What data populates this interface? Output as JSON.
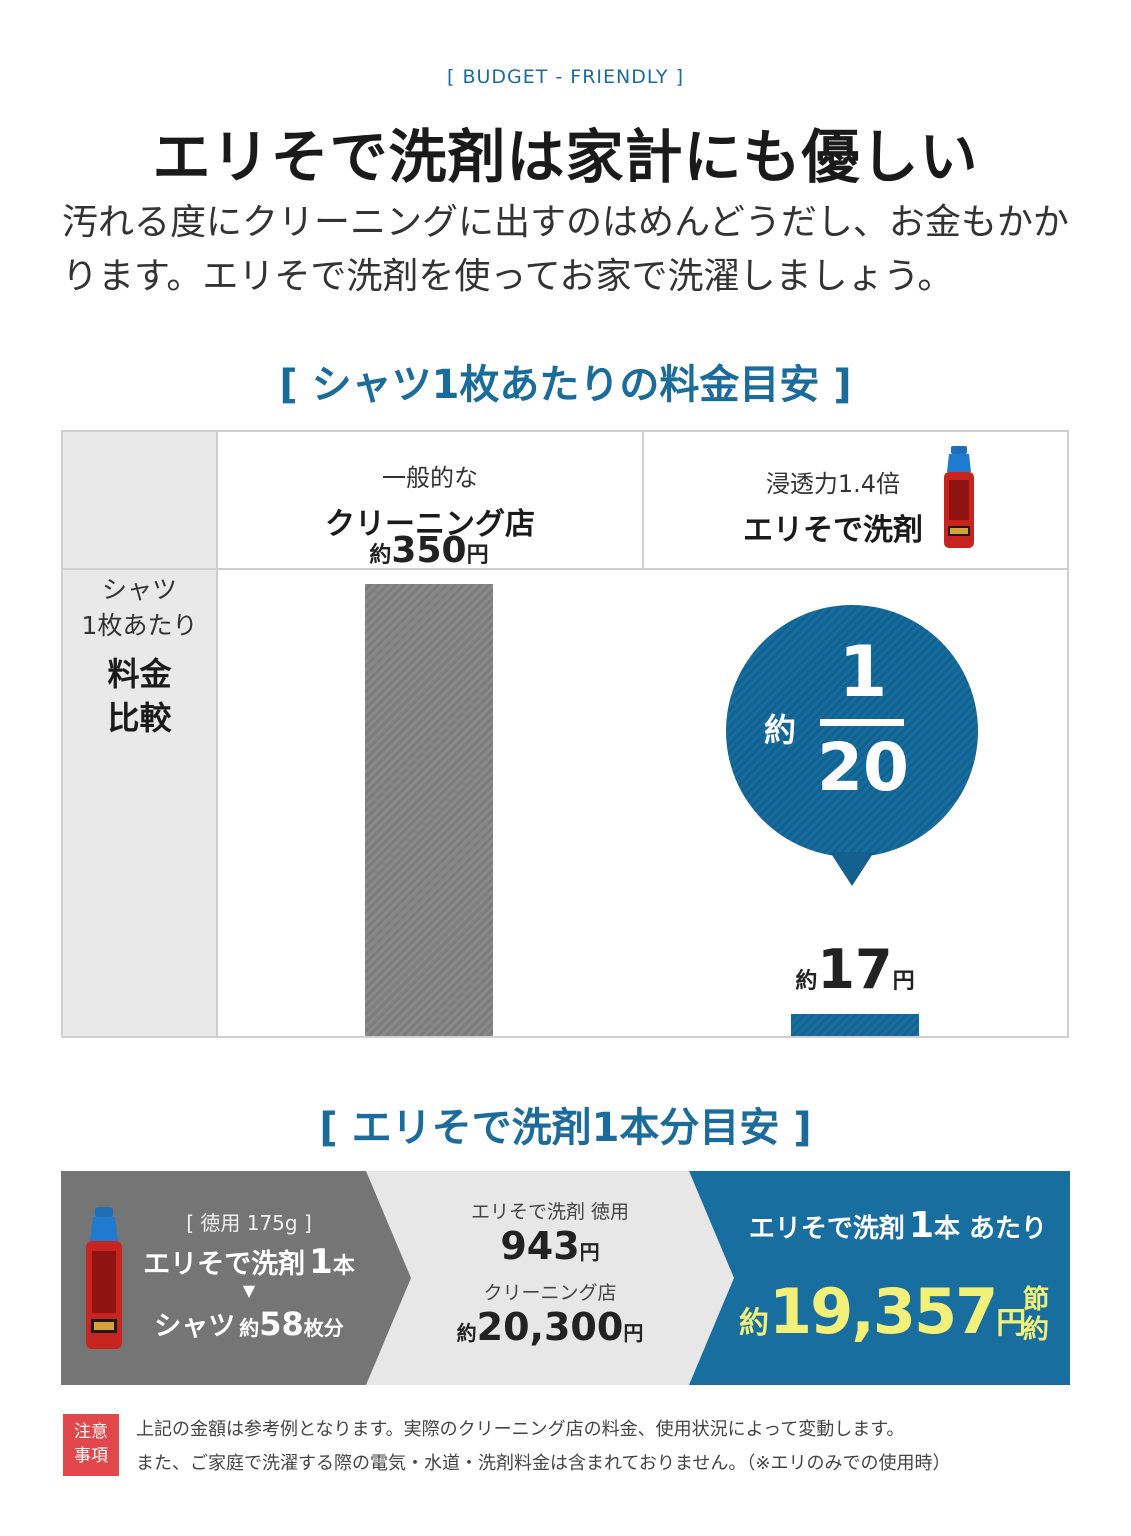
{
  "header": {
    "eyebrow": "[ BUDGET - FRIENDLY ]",
    "title": "エリそで洗剤は家計にも優しい",
    "lead": "汚れる度にクリーニングに出すのはめんどうだし、お金もかかります。エリそで洗剤を使ってお家で洗濯しましょう。"
  },
  "comparison": {
    "section_title": "[ シャツ1枚あたりの料金目安 ]",
    "col1": {
      "small": "一般的な",
      "big": "クリーニング店"
    },
    "col2": {
      "small": "浸透力1.4倍",
      "big": "エリそで洗剤"
    },
    "row_label": {
      "line1": "シャツ",
      "line2": "1枚あたり",
      "line3": "料金",
      "line4": "比較"
    },
    "bar1": {
      "prefix": "約",
      "value": "350",
      "unit": "円"
    },
    "bar2": {
      "prefix": "約",
      "value": "17",
      "unit": "円"
    },
    "bubble": {
      "prefix": "約",
      "numerator": "1",
      "denominator": "20"
    },
    "colors": {
      "gray": "#808080",
      "blue": "#176e9f"
    }
  },
  "chart_data": {
    "type": "bar",
    "categories": [
      "一般的な クリーニング店",
      "浸透力1.4倍 エリそで洗剤"
    ],
    "values": [
      350,
      17
    ],
    "title": "[ シャツ1枚あたりの料金目安 ]",
    "ylabel": "シャツ 1枚あたり 料金 比較",
    "unit": "円",
    "ratio": "約1/20"
  },
  "summary": {
    "section_title": "[ エリそで洗剤1本分目安 ]",
    "left": {
      "tag": "[ 徳用 175g ]",
      "line1a": "エリそで洗剤",
      "line1b": "1",
      "line1c": "本",
      "arrow": "▼",
      "line2a": "シャツ",
      "line2b": "約",
      "line2c": "58",
      "line2d": "枚分"
    },
    "middle": {
      "label1": "エリそで洗剤 徳用",
      "price1": "943",
      "unit1": "円",
      "label2": "クリーニング店",
      "prefix2": "約",
      "price2": "20,300",
      "unit2": "円"
    },
    "right": {
      "title_a": "エリそで洗剤",
      "title_b": "1",
      "title_c": "本 あたり",
      "prefix": "約",
      "amount": "19,357",
      "unit": "円",
      "suffix1": "節",
      "suffix2": "約"
    }
  },
  "note": {
    "badge1": "注意",
    "badge2": "事項",
    "line1": "上記の金額は参考例となります。実際のクリーニング店の料金、使用状況によって変動します。",
    "line2": "また、ご家庭で洗濯する際の電気・水道・洗剤料金は含まれておりません。（※エリのみでの使用時）"
  }
}
